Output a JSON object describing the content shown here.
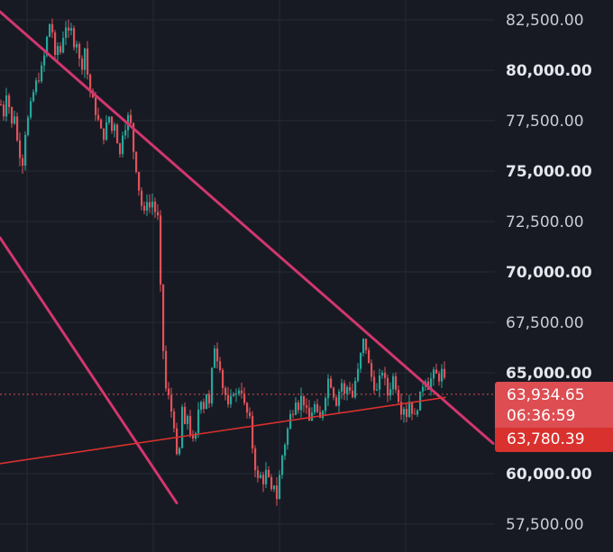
{
  "chart_data": {
    "type": "candlestick",
    "ylim": [
      56400,
      83000
    ],
    "y_ticks": [
      {
        "label": "82,500.00",
        "value": 82500,
        "bold": false
      },
      {
        "label": "80,000.00",
        "value": 80000,
        "bold": true
      },
      {
        "label": "77,500.00",
        "value": 77500,
        "bold": false
      },
      {
        "label": "75,000.00",
        "value": 75000,
        "bold": true
      },
      {
        "label": "72,500.00",
        "value": 72500,
        "bold": false
      },
      {
        "label": "70,000.00",
        "value": 70000,
        "bold": true
      },
      {
        "label": "67,500.00",
        "value": 67500,
        "bold": false
      },
      {
        "label": "65,000.00",
        "value": 65000,
        "bold": true
      },
      {
        "label": "60,000.00",
        "value": 60000,
        "bold": true
      },
      {
        "label": "57,500.00",
        "value": 57500,
        "bold": false
      }
    ],
    "current_price": {
      "value": 63934.65,
      "label": "63,934.65",
      "countdown": "06:36:59"
    },
    "level": {
      "value": 63780.39,
      "label": "63,780.39"
    },
    "close_path": [
      [
        0,
        78300
      ],
      [
        3,
        77800
      ],
      [
        6,
        78900
      ],
      [
        9,
        78200
      ],
      [
        12,
        77300
      ],
      [
        15,
        77800
      ],
      [
        18,
        76500
      ],
      [
        21,
        75800
      ],
      [
        24,
        75400
      ],
      [
        27,
        76900
      ],
      [
        30,
        77600
      ],
      [
        33,
        78300
      ],
      [
        36,
        78900
      ],
      [
        39,
        79400
      ],
      [
        42,
        79600
      ],
      [
        45,
        80100
      ],
      [
        48,
        80700
      ],
      [
        51,
        81600
      ],
      [
        54,
        82300
      ],
      [
        57,
        81900
      ],
      [
        60,
        80600
      ],
      [
        63,
        81200
      ],
      [
        66,
        80900
      ],
      [
        69,
        81700
      ],
      [
        72,
        82200
      ],
      [
        75,
        81800
      ],
      [
        78,
        82000
      ],
      [
        81,
        81300
      ],
      [
        84,
        81400
      ],
      [
        87,
        80500
      ],
      [
        90,
        80200
      ],
      [
        93,
        81100
      ],
      [
        96,
        79800
      ],
      [
        99,
        79000
      ],
      [
        102,
        78500
      ],
      [
        105,
        77900
      ],
      [
        108,
        77500
      ],
      [
        111,
        77000
      ],
      [
        114,
        76700
      ],
      [
        117,
        77300
      ],
      [
        120,
        77700
      ],
      [
        123,
        77000
      ],
      [
        126,
        77400
      ],
      [
        129,
        76500
      ],
      [
        132,
        75800
      ],
      [
        135,
        76900
      ],
      [
        138,
        77200
      ],
      [
        141,
        77700
      ],
      [
        144,
        77300
      ],
      [
        147,
        76000
      ],
      [
        150,
        75100
      ],
      [
        153,
        74100
      ],
      [
        156,
        73300
      ],
      [
        159,
        72900
      ],
      [
        162,
        73600
      ],
      [
        165,
        73200
      ],
      [
        168,
        73500
      ],
      [
        171,
        73000
      ],
      [
        174,
        72700
      ],
      [
        177,
        69200
      ],
      [
        180,
        66100
      ],
      [
        183,
        64200
      ],
      [
        186,
        63800
      ],
      [
        189,
        63100
      ],
      [
        192,
        62400
      ],
      [
        195,
        60800
      ],
      [
        198,
        61200
      ],
      [
        201,
        63300
      ],
      [
        204,
        62300
      ],
      [
        207,
        62900
      ],
      [
        210,
        62000
      ],
      [
        213,
        61600
      ],
      [
        216,
        61900
      ],
      [
        219,
        63200
      ],
      [
        222,
        63700
      ],
      [
        225,
        63300
      ],
      [
        228,
        64000
      ],
      [
        231,
        63400
      ],
      [
        234,
        65100
      ],
      [
        237,
        66300
      ],
      [
        240,
        65700
      ],
      [
        243,
        65300
      ],
      [
        246,
        64300
      ],
      [
        249,
        63900
      ],
      [
        252,
        63300
      ],
      [
        255,
        63700
      ],
      [
        258,
        64100
      ],
      [
        261,
        63900
      ],
      [
        264,
        64200
      ],
      [
        267,
        64100
      ],
      [
        270,
        63400
      ],
      [
        273,
        63000
      ],
      [
        276,
        62700
      ],
      [
        279,
        61300
      ],
      [
        282,
        60300
      ],
      [
        285,
        59700
      ],
      [
        288,
        59900
      ],
      [
        291,
        59600
      ],
      [
        294,
        60100
      ],
      [
        297,
        59700
      ],
      [
        300,
        59100
      ],
      [
        303,
        59500
      ],
      [
        306,
        58800
      ],
      [
        309,
        59900
      ],
      [
        312,
        60900
      ],
      [
        315,
        61500
      ],
      [
        318,
        62200
      ],
      [
        321,
        62900
      ],
      [
        324,
        63100
      ],
      [
        327,
        63700
      ],
      [
        330,
        63300
      ],
      [
        333,
        63800
      ],
      [
        336,
        63500
      ],
      [
        339,
        63100
      ],
      [
        342,
        62600
      ],
      [
        345,
        63100
      ],
      [
        348,
        63400
      ],
      [
        351,
        62900
      ],
      [
        354,
        62700
      ],
      [
        357,
        63200
      ],
      [
        360,
        63900
      ],
      [
        363,
        64700
      ],
      [
        366,
        64400
      ],
      [
        369,
        63900
      ],
      [
        372,
        63500
      ],
      [
        375,
        64100
      ],
      [
        378,
        64500
      ],
      [
        381,
        63900
      ],
      [
        384,
        64300
      ],
      [
        387,
        64200
      ],
      [
        390,
        63800
      ],
      [
        393,
        64600
      ],
      [
        396,
        65100
      ],
      [
        399,
        65900
      ],
      [
        402,
        66600
      ],
      [
        405,
        66200
      ],
      [
        408,
        65400
      ],
      [
        411,
        64800
      ],
      [
        414,
        64300
      ],
      [
        417,
        64100
      ],
      [
        420,
        64700
      ],
      [
        423,
        65100
      ],
      [
        426,
        64600
      ],
      [
        429,
        63900
      ],
      [
        432,
        64300
      ],
      [
        435,
        64800
      ],
      [
        438,
        64300
      ],
      [
        441,
        63700
      ],
      [
        444,
        63100
      ],
      [
        447,
        63300
      ],
      [
        450,
        62900
      ],
      [
        453,
        63600
      ],
      [
        456,
        63100
      ],
      [
        459,
        62800
      ],
      [
        462,
        63300
      ],
      [
        465,
        63900
      ],
      [
        468,
        64400
      ],
      [
        471,
        64700
      ],
      [
        474,
        64300
      ],
      [
        477,
        64700
      ],
      [
        480,
        65000
      ],
      [
        483,
        64900
      ],
      [
        486,
        64700
      ],
      [
        489,
        65100
      ],
      [
        492,
        64600
      ],
      [
        494,
        63935
      ]
    ],
    "lines": [
      {
        "name": "",
        "color": "#d2366e",
        "points": [
          [
            0,
            82900
          ],
          [
            547,
            61500
          ]
        ]
      },
      {
        "name": "",
        "color": "#d2366e",
        "points": [
          [
            0,
            71700
          ],
          [
            196,
            58550
          ]
        ]
      },
      {
        "name": "",
        "color": "#d9312d",
        "points": [
          [
            0,
            60500
          ],
          [
            494,
            63780
          ]
        ]
      }
    ]
  },
  "colors": {
    "background": "#171a23",
    "grid": "#262a35",
    "up": "#26a69a",
    "down": "#e0525a",
    "trendline": "#d2366e",
    "support": "#d9312d",
    "price_tag": "#dd4d52",
    "level_tag": "#d9312d"
  }
}
